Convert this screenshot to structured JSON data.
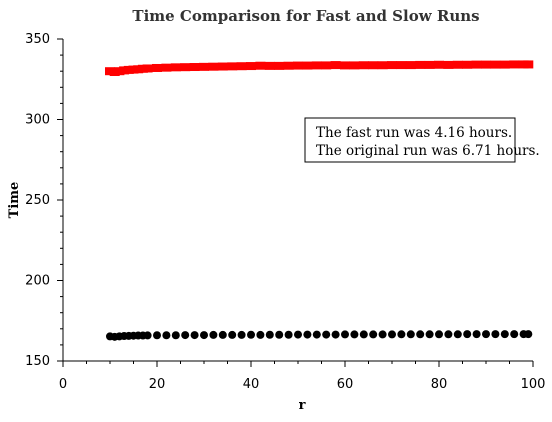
{
  "chart_data": {
    "type": "scatter",
    "title": "Time Comparison for Fast and Slow Runs",
    "xlabel": "r",
    "ylabel": "Time",
    "xlim": [
      0,
      100
    ],
    "ylim": [
      150,
      350
    ],
    "x_ticks": [
      "0",
      "20",
      "40",
      "60",
      "80",
      "100"
    ],
    "y_ticks": [
      "150",
      "200",
      "250",
      "300",
      "350"
    ],
    "grid": false,
    "annotation": {
      "position": "upper-right",
      "lines": [
        "The fast run was 4.16 hours.",
        "The original run was 6.71 hours."
      ]
    },
    "series": [
      {
        "color": "#ff0000",
        "marker": "square",
        "x": [
          10,
          11,
          12,
          13,
          14,
          15,
          16,
          17,
          18,
          20,
          22,
          24,
          26,
          28,
          30,
          32,
          34,
          36,
          38,
          40,
          42,
          44,
          46,
          48,
          50,
          52,
          54,
          56,
          58,
          60,
          62,
          64,
          66,
          68,
          70,
          72,
          74,
          76,
          78,
          80,
          82,
          84,
          86,
          88,
          90,
          92,
          94,
          96,
          98,
          99
        ],
        "values": [
          330,
          329.5,
          330,
          330.5,
          330.8,
          331,
          331.2,
          331.5,
          331.7,
          332,
          332.2,
          332.4,
          332.5,
          332.6,
          332.7,
          332.8,
          332.9,
          333,
          333.1,
          333.2,
          333.4,
          333.3,
          333.3,
          333.4,
          333.5,
          333.5,
          333.6,
          333.6,
          333.8,
          333.6,
          333.6,
          333.7,
          333.7,
          333.7,
          333.8,
          333.8,
          333.8,
          333.9,
          333.9,
          334,
          333.9,
          334,
          334,
          334.1,
          334.1,
          334.1,
          334.1,
          334.2,
          334.2,
          334.2
        ]
      },
      {
        "color": "#000000",
        "marker": "circle",
        "x": [
          10,
          11,
          12,
          13,
          14,
          15,
          16,
          17,
          18,
          20,
          22,
          24,
          26,
          28,
          30,
          32,
          34,
          36,
          38,
          40,
          42,
          44,
          46,
          48,
          50,
          52,
          54,
          56,
          58,
          60,
          62,
          64,
          66,
          68,
          70,
          72,
          74,
          76,
          78,
          80,
          82,
          84,
          86,
          88,
          90,
          92,
          94,
          96,
          98,
          99
        ],
        "values": [
          165.3,
          165,
          165.3,
          165.5,
          165.6,
          165.7,
          165.8,
          165.8,
          165.9,
          166,
          166,
          166,
          166.1,
          166.1,
          166.1,
          166.2,
          166.2,
          166.2,
          166.2,
          166.3,
          166.2,
          166.3,
          166.3,
          166.3,
          166.4,
          166.4,
          166.4,
          166.4,
          166.4,
          166.5,
          166.5,
          166.5,
          166.5,
          166.5,
          166.5,
          166.6,
          166.6,
          166.6,
          166.6,
          166.6,
          166.6,
          166.6,
          166.7,
          166.7,
          166.7,
          166.7,
          166.7,
          166.7,
          166.7,
          166.7
        ]
      }
    ]
  }
}
